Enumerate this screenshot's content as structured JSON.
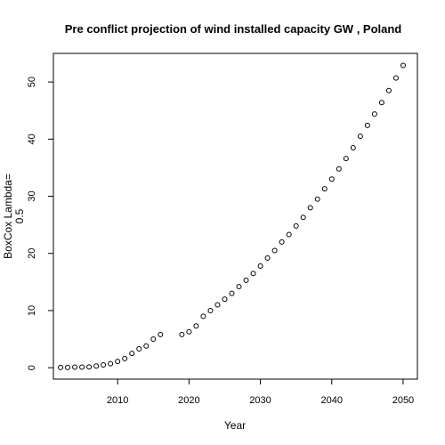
{
  "chart_data": {
    "type": "scatter",
    "title": "Pre conflict projection of wind installed capacity GW , Poland",
    "xlabel": "Year",
    "ylabel_lines": [
      "BoxCox Lambda=",
      "0.5"
    ],
    "xlim": [
      2001,
      2052
    ],
    "ylim": [
      -2,
      55
    ],
    "xticks": [
      2010,
      2020,
      2030,
      2040,
      2050
    ],
    "yticks": [
      0,
      10,
      20,
      30,
      40,
      50
    ],
    "grid": false,
    "x": [
      2002,
      2003,
      2004,
      2005,
      2006,
      2007,
      2008,
      2009,
      2010,
      2011,
      2012,
      2013,
      2014,
      2015,
      2016,
      2019,
      2020,
      2021,
      2022,
      2023,
      2024,
      2025,
      2026,
      2027,
      2028,
      2029,
      2030,
      2031,
      2032,
      2033,
      2034,
      2035,
      2036,
      2037,
      2038,
      2039,
      2040,
      2041,
      2042,
      2043,
      2044,
      2045,
      2046,
      2047,
      2048,
      2049,
      2050
    ],
    "y": [
      0.05,
      0.05,
      0.1,
      0.1,
      0.15,
      0.3,
      0.5,
      0.7,
      1.1,
      1.6,
      2.5,
      3.3,
      3.8,
      5.0,
      5.8,
      5.8,
      6.3,
      7.3,
      9.0,
      10.0,
      11.0,
      12.0,
      13.0,
      14.2,
      15.3,
      16.5,
      17.8,
      19.2,
      20.5,
      22.0,
      23.3,
      24.8,
      26.3,
      28.0,
      29.5,
      31.3,
      33.0,
      34.8,
      36.6,
      38.5,
      40.5,
      42.4,
      44.4,
      46.4,
      48.5,
      50.7,
      52.9
    ]
  }
}
